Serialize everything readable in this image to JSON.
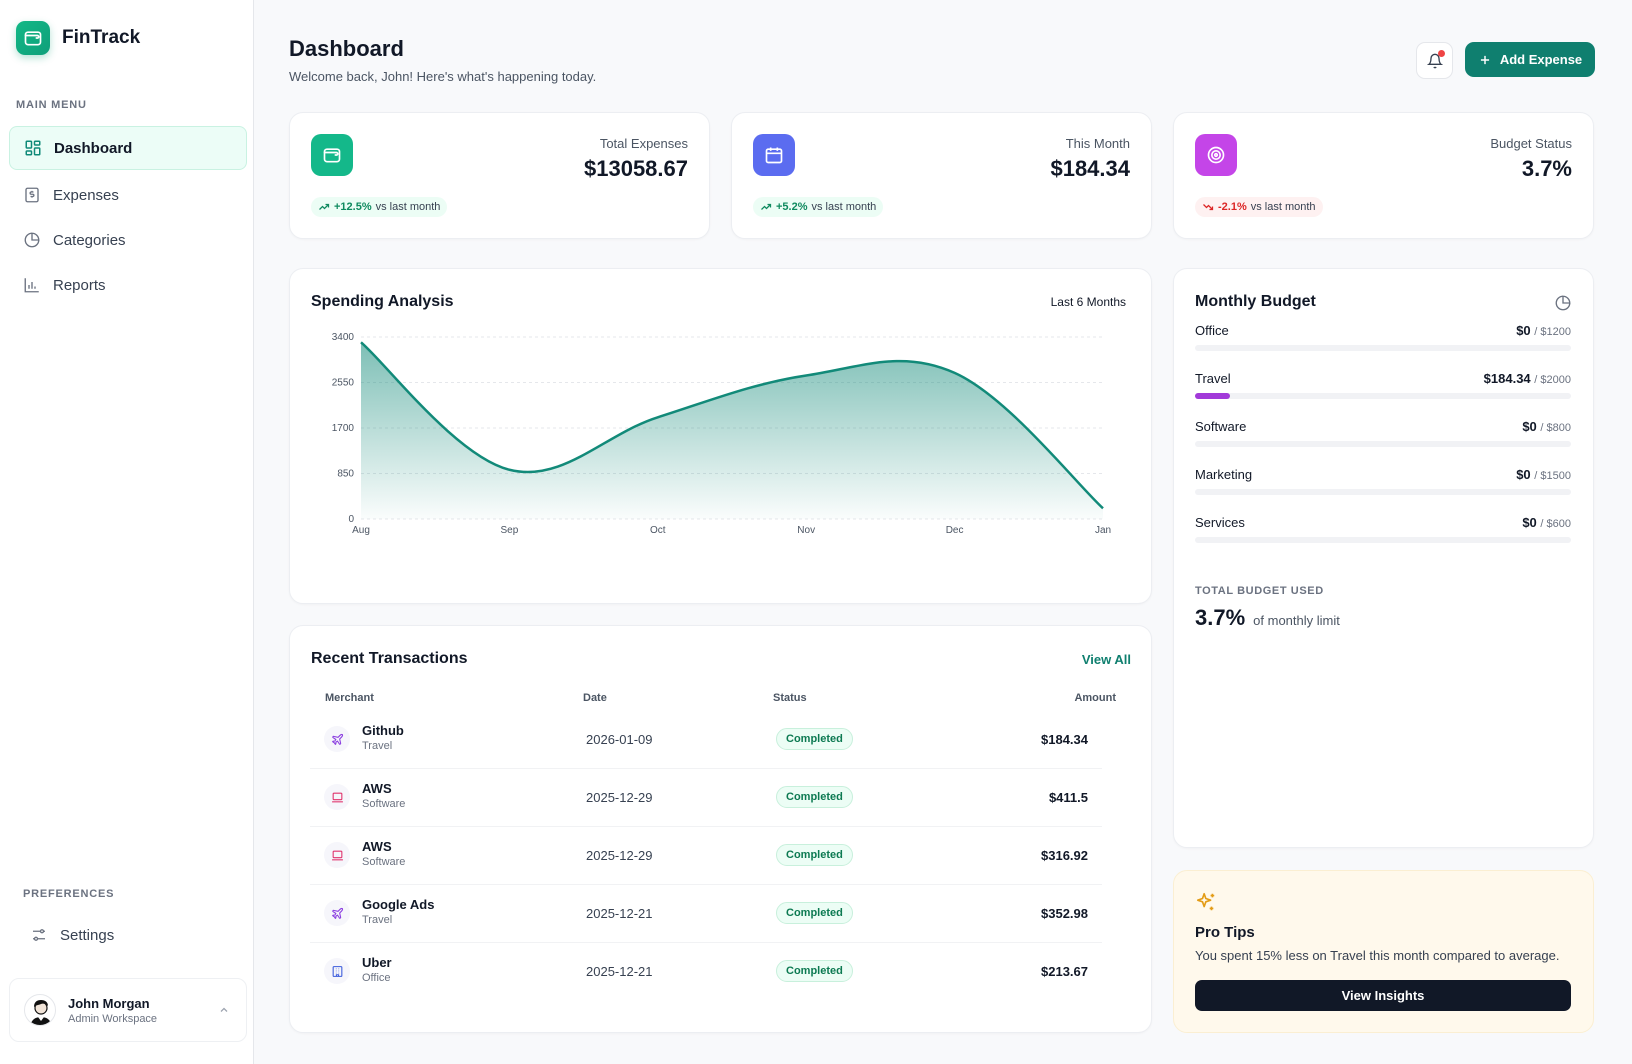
{
  "brand": {
    "name": "FinTrack"
  },
  "sidebar": {
    "main_menu_title": "MAIN MENU",
    "items": [
      {
        "label": "Dashboard"
      },
      {
        "label": "Expenses"
      },
      {
        "label": "Categories"
      },
      {
        "label": "Reports"
      }
    ],
    "preferences_title": "PREFERENCES",
    "settings_label": "Settings",
    "user": {
      "name": "John Morgan",
      "role": "Admin Workspace"
    }
  },
  "header": {
    "title": "Dashboard",
    "subtitle": "Welcome back, John! Here's what's happening today.",
    "add_button_label": "Add Expense"
  },
  "stats": [
    {
      "label": "Total Expenses",
      "value": "$13058.67",
      "trend": "+12.5%",
      "trend_suffix": "vs last month",
      "icon": "wallet-icon",
      "color": "#14b88a"
    },
    {
      "label": "This Month",
      "value": "$184.34",
      "trend": "+5.2%",
      "trend_suffix": "vs last month",
      "icon": "calendar-icon",
      "color": "#5b6cf0"
    },
    {
      "label": "Budget Status",
      "value": "3.7%",
      "trend": "-2.1%",
      "trend_suffix": "vs last month",
      "icon": "target-icon",
      "color": "#c445e8"
    }
  ],
  "spending": {
    "title": "Spending Analysis",
    "range_label": "Last 6 Months"
  },
  "chart_data": {
    "type": "area",
    "title": "Spending Analysis",
    "categories": [
      "Aug",
      "Sep",
      "Oct",
      "Nov",
      "Dec",
      "Jan"
    ],
    "values": [
      3300,
      920,
      1900,
      2680,
      2730,
      200
    ],
    "ylim": [
      0,
      3400
    ],
    "yticks": [
      "3400",
      "2550",
      "1700",
      "850",
      "0"
    ],
    "grid": true,
    "color": "#128a79"
  },
  "transactions": {
    "title": "Recent Transactions",
    "view_all": "View All",
    "columns": [
      "Merchant",
      "Date",
      "Status",
      "Amount"
    ],
    "rows": [
      {
        "merchant": "Github",
        "category": "Travel",
        "date": "2026-01-09",
        "status": "Completed",
        "amount": "$184.34",
        "icon": "plane-icon",
        "icon_color": "#8b3fe0"
      },
      {
        "merchant": "AWS",
        "category": "Software",
        "date": "2025-12-29",
        "status": "Completed",
        "amount": "$411.5",
        "icon": "laptop-icon",
        "icon_color": "#e0336d"
      },
      {
        "merchant": "AWS",
        "category": "Software",
        "date": "2025-12-29",
        "status": "Completed",
        "amount": "$316.92",
        "icon": "laptop-icon",
        "icon_color": "#e0336d"
      },
      {
        "merchant": "Google Ads",
        "category": "Travel",
        "date": "2025-12-21",
        "status": "Completed",
        "amount": "$352.98",
        "icon": "plane-icon",
        "icon_color": "#8b3fe0"
      },
      {
        "merchant": "Uber",
        "category": "Office",
        "date": "2025-12-21",
        "status": "Completed",
        "amount": "$213.67",
        "icon": "building-icon",
        "icon_color": "#3b5bdb"
      }
    ]
  },
  "budget": {
    "title": "Monthly Budget",
    "items": [
      {
        "name": "Office",
        "spent": "$0",
        "limit": "/ $1200",
        "progress": 0
      },
      {
        "name": "Travel",
        "spent": "$184.34",
        "limit": "/ $2000",
        "progress": 0.092
      },
      {
        "name": "Software",
        "spent": "$0",
        "limit": "/ $800",
        "progress": 0
      },
      {
        "name": "Marketing",
        "spent": "$0",
        "limit": "/ $1500",
        "progress": 0
      },
      {
        "name": "Services",
        "spent": "$0",
        "limit": "/ $600",
        "progress": 0
      }
    ],
    "total_label": "TOTAL BUDGET USED",
    "total_value": "3.7%",
    "total_suffix": "of monthly limit"
  },
  "tips": {
    "title": "Pro Tips",
    "text": "You spent 15% less on Travel this month compared to average.",
    "button": "View Insights"
  }
}
